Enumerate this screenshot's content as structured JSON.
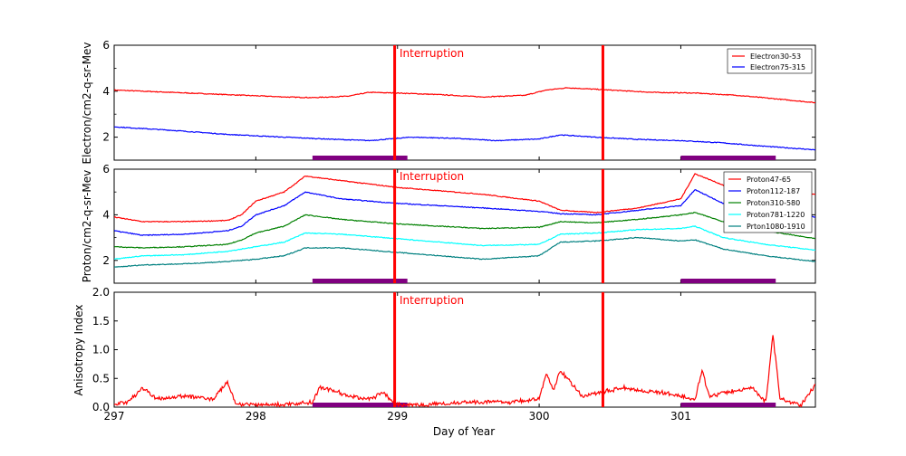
{
  "colors": {
    "red": "#ff0000",
    "blue": "#0000ff",
    "green": "#008000",
    "cyan": "#00ffff",
    "teal": "#008080",
    "purple": "#800080"
  },
  "chart_data": [
    {
      "type": "line",
      "panel": "electron",
      "ylabel": "Electron/cm2-q-sr-Mev",
      "ylim": [
        1,
        6
      ],
      "yticks": [
        "2",
        "4",
        "6"
      ],
      "interruption_label": "Interruption",
      "legend": [
        "Electron30-53",
        "Electron75-315"
      ],
      "series": [
        {
          "name": "Electron30-53",
          "color": "red",
          "x": [
            297.0,
            297.4,
            297.8,
            298.2,
            298.4,
            298.65,
            298.8,
            299.0,
            299.3,
            299.6,
            299.9,
            300.05,
            300.2,
            300.5,
            300.8,
            301.1,
            301.4,
            301.7,
            301.95
          ],
          "y": [
            4.05,
            3.95,
            3.85,
            3.75,
            3.72,
            3.78,
            3.95,
            3.92,
            3.85,
            3.75,
            3.82,
            4.05,
            4.15,
            4.05,
            3.95,
            3.92,
            3.82,
            3.65,
            3.5
          ]
        },
        {
          "name": "Electron75-315",
          "color": "blue",
          "x": [
            297.0,
            297.4,
            297.8,
            298.2,
            298.5,
            298.8,
            299.1,
            299.4,
            299.7,
            300.0,
            300.15,
            300.4,
            300.7,
            301.0,
            301.3,
            301.6,
            301.95
          ],
          "y": [
            2.45,
            2.3,
            2.12,
            2.0,
            1.92,
            1.85,
            2.0,
            1.95,
            1.85,
            1.92,
            2.1,
            2.0,
            1.9,
            1.85,
            1.75,
            1.6,
            1.45
          ]
        }
      ]
    },
    {
      "type": "line",
      "panel": "proton",
      "ylabel": "Proton/cm2-q-sr-Mev",
      "ylim": [
        1,
        6
      ],
      "yticks": [
        "2",
        "4",
        "6"
      ],
      "interruption_label": "Interruption",
      "legend": [
        "Proton47-65",
        "Proton112-187",
        "Proton310-580",
        "Proton781-1220",
        "Prton1080-1910"
      ],
      "series": [
        {
          "name": "Proton47-65",
          "color": "red",
          "x": [
            297.0,
            297.2,
            297.5,
            297.8,
            297.9,
            298.0,
            298.2,
            298.35,
            298.6,
            299.0,
            299.3,
            299.6,
            300.0,
            300.15,
            300.4,
            300.7,
            301.0,
            301.1,
            301.3,
            301.6,
            301.95
          ],
          "y": [
            3.9,
            3.7,
            3.7,
            3.75,
            4.0,
            4.6,
            5.0,
            5.7,
            5.5,
            5.2,
            5.05,
            4.9,
            4.6,
            4.2,
            4.1,
            4.3,
            4.7,
            5.8,
            5.3,
            5.1,
            4.9
          ]
        },
        {
          "name": "Proton112-187",
          "color": "blue",
          "x": [
            297.0,
            297.2,
            297.5,
            297.8,
            297.9,
            298.0,
            298.2,
            298.35,
            298.6,
            299.0,
            299.3,
            299.6,
            300.0,
            300.15,
            300.4,
            300.7,
            301.0,
            301.1,
            301.3,
            301.6,
            301.95
          ],
          "y": [
            3.3,
            3.1,
            3.15,
            3.3,
            3.5,
            4.0,
            4.4,
            5.0,
            4.7,
            4.5,
            4.4,
            4.3,
            4.15,
            4.05,
            4.0,
            4.2,
            4.4,
            5.1,
            4.5,
            4.3,
            3.9
          ]
        },
        {
          "name": "Proton310-580",
          "color": "green",
          "x": [
            297.0,
            297.2,
            297.5,
            297.8,
            297.9,
            298.0,
            298.2,
            298.35,
            298.6,
            299.0,
            299.3,
            299.6,
            300.0,
            300.15,
            300.4,
            300.7,
            301.0,
            301.1,
            301.3,
            301.6,
            301.95
          ],
          "y": [
            2.6,
            2.55,
            2.6,
            2.7,
            2.9,
            3.2,
            3.5,
            4.0,
            3.8,
            3.6,
            3.5,
            3.4,
            3.45,
            3.7,
            3.65,
            3.8,
            4.0,
            4.1,
            3.7,
            3.3,
            2.95
          ]
        },
        {
          "name": "Proton781-1220",
          "color": "cyan",
          "x": [
            297.0,
            297.2,
            297.5,
            297.8,
            297.9,
            298.0,
            298.2,
            298.35,
            298.6,
            299.0,
            299.3,
            299.6,
            300.0,
            300.15,
            300.4,
            300.7,
            301.0,
            301.1,
            301.3,
            301.6,
            301.95
          ],
          "y": [
            2.05,
            2.2,
            2.25,
            2.4,
            2.5,
            2.6,
            2.8,
            3.2,
            3.15,
            2.95,
            2.8,
            2.65,
            2.7,
            3.15,
            3.2,
            3.35,
            3.4,
            3.5,
            3.0,
            2.7,
            2.45
          ]
        },
        {
          "name": "Prton1080-1910",
          "color": "teal",
          "x": [
            297.0,
            297.2,
            297.5,
            297.8,
            297.9,
            298.0,
            298.2,
            298.35,
            298.6,
            299.0,
            299.3,
            299.6,
            300.0,
            300.15,
            300.4,
            300.7,
            301.0,
            301.1,
            301.3,
            301.6,
            301.95
          ],
          "y": [
            1.7,
            1.8,
            1.85,
            1.95,
            2.0,
            2.05,
            2.2,
            2.55,
            2.55,
            2.35,
            2.2,
            2.05,
            2.2,
            2.8,
            2.85,
            3.0,
            2.85,
            2.9,
            2.5,
            2.2,
            1.95
          ]
        }
      ]
    },
    {
      "type": "line",
      "panel": "anisotropy",
      "ylabel": "Anisotropy Index",
      "xlabel": "Day of Year",
      "ylim": [
        0,
        2
      ],
      "yticks": [
        "0.0",
        "0.5",
        "1.0",
        "1.5",
        "2.0"
      ],
      "xticks": [
        "297",
        "298",
        "299",
        "300",
        "301"
      ],
      "interruption_label": "Interruption",
      "series": [
        {
          "name": "Anisotropy",
          "color": "red",
          "x": [
            297.0,
            297.1,
            297.2,
            297.3,
            297.5,
            297.7,
            297.8,
            297.85,
            297.9,
            298.2,
            298.4,
            298.45,
            298.55,
            298.65,
            298.8,
            298.9,
            299.0,
            299.2,
            299.5,
            299.8,
            300.0,
            300.05,
            300.1,
            300.15,
            300.3,
            300.5,
            300.6,
            300.7,
            300.9,
            301.0,
            301.1,
            301.15,
            301.2,
            301.4,
            301.5,
            301.6,
            301.65,
            301.7,
            301.85,
            301.95
          ],
          "y": [
            0.05,
            0.1,
            0.35,
            0.15,
            0.2,
            0.15,
            0.45,
            0.1,
            0.05,
            0.05,
            0.1,
            0.35,
            0.3,
            0.2,
            0.15,
            0.25,
            0.05,
            0.05,
            0.1,
            0.1,
            0.15,
            0.6,
            0.3,
            0.65,
            0.2,
            0.3,
            0.35,
            0.3,
            0.25,
            0.2,
            0.15,
            0.65,
            0.2,
            0.3,
            0.35,
            0.1,
            1.27,
            0.15,
            0.05,
            0.4
          ]
        }
      ]
    }
  ],
  "interruptions_day": [
    298.98,
    300.45
  ],
  "bars": [
    [
      298.4,
      299.07
    ],
    [
      301.0,
      301.67
    ]
  ]
}
